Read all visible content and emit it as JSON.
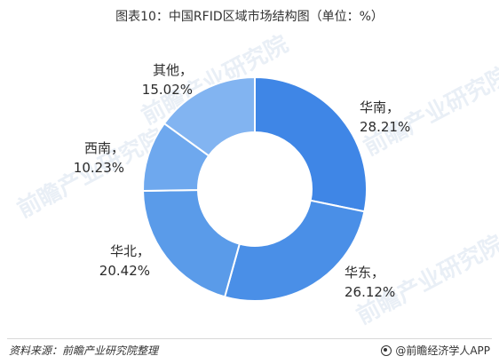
{
  "title": "图表10：中国RFID区域市场结构图（单位：%）",
  "watermark": "前瞻产业研究院",
  "chart_data": {
    "type": "pie",
    "donut": true,
    "title": "图表10：中国RFID区域市场结构图（单位：%）",
    "unit": "%",
    "series": [
      {
        "name": "华南",
        "value": 28.21,
        "label": "28.21%",
        "color": "#3f86e6"
      },
      {
        "name": "华东",
        "value": 26.12,
        "label": "26.12%",
        "color": "#4a8fe7"
      },
      {
        "name": "华北",
        "value": 20.42,
        "label": "20.42%",
        "color": "#5a9be9"
      },
      {
        "name": "西南",
        "value": 10.23,
        "label": "10.23%",
        "color": "#6ea8ee"
      },
      {
        "name": "其他",
        "value": 15.02,
        "label": "15.02%",
        "color": "#82b4f1"
      }
    ]
  },
  "footer": {
    "source": "资料来源：前瞻产业研究院整理",
    "brand": "@前瞻经济学人APP"
  }
}
